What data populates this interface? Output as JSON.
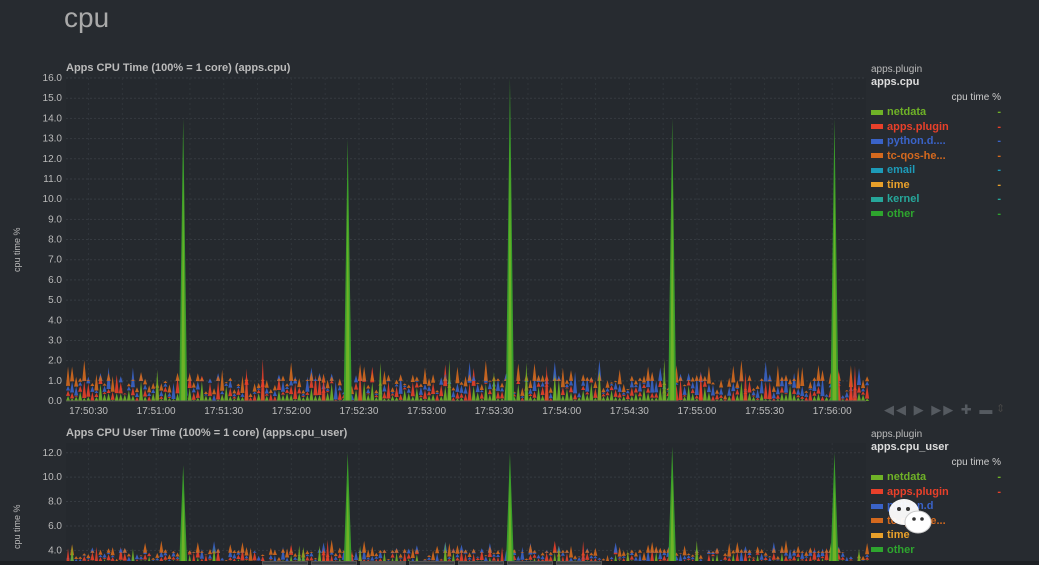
{
  "page": {
    "section_title": "cpu"
  },
  "chart_data": [
    {
      "type": "area",
      "title": "Apps CPU Time (100% = 1 core) (apps.cpu)",
      "ylabel": "cpu time %",
      "ylim": [
        0,
        16
      ],
      "yticks": [
        "16.0",
        "15.0",
        "14.0",
        "13.0",
        "12.0",
        "11.0",
        "10.0",
        "9.0",
        "8.0",
        "7.0",
        "6.0",
        "5.0",
        "4.0",
        "3.0",
        "2.0",
        "1.0",
        "0.0"
      ],
      "xticks": [
        "17:50:30",
        "17:51:00",
        "17:51:30",
        "17:52:00",
        "17:52:30",
        "17:53:00",
        "17:53:30",
        "17:54:00",
        "17:54:30",
        "17:55:00",
        "17:55:30",
        "17:56:00"
      ],
      "xlim_seconds": [
        -40,
        315
      ],
      "grid": true,
      "spikes": [
        {
          "t": 12,
          "value": 14.0
        },
        {
          "t": 85,
          "value": 13.0
        },
        {
          "t": 157,
          "value": 16.0
        },
        {
          "t": 229,
          "value": 14.0
        },
        {
          "t": 301,
          "value": 14.0
        }
      ],
      "legend": {
        "context_label": "apps.plugin",
        "chart_id": "apps.cpu",
        "units": "cpu time %",
        "series": [
          {
            "name": "netdata",
            "color": "#6fb227",
            "value": "-"
          },
          {
            "name": "apps.plugin",
            "color": "#e8402a",
            "value": "-"
          },
          {
            "name": "python.d....",
            "color": "#3a63c8",
            "value": "-"
          },
          {
            "name": "tc-qos-he...",
            "color": "#d4691e",
            "value": "-"
          },
          {
            "name": "email",
            "color": "#1d9bb8",
            "value": "-"
          },
          {
            "name": "time",
            "color": "#e8a02a",
            "value": "-"
          },
          {
            "name": "kernel",
            "color": "#26a69a",
            "value": "-"
          },
          {
            "name": "other",
            "color": "#2ea52e",
            "value": "-"
          }
        ]
      }
    },
    {
      "type": "area",
      "title": "Apps CPU User Time (100% = 1 core) (apps.cpu_user)",
      "ylabel": "cpu time %",
      "ylim": [
        2.8,
        12.8
      ],
      "yticks": [
        "12.0",
        "10.0",
        "8.0",
        "6.0",
        "4.0"
      ],
      "xlim_seconds": [
        -40,
        315
      ],
      "grid": true,
      "spikes": [
        {
          "t": 12,
          "value": 11.0
        },
        {
          "t": 85,
          "value": 12.0
        },
        {
          "t": 157,
          "value": 12.0
        },
        {
          "t": 229,
          "value": 12.5
        },
        {
          "t": 301,
          "value": 12.0
        }
      ],
      "legend": {
        "context_label": "apps.plugin",
        "chart_id": "apps.cpu_user",
        "units": "cpu time %",
        "series": [
          {
            "name": "netdata",
            "color": "#6fb227",
            "value": "-"
          },
          {
            "name": "apps.plugin",
            "color": "#e8402a",
            "value": "-"
          },
          {
            "name": "python.d",
            "color": "#3a63c8",
            "value": ""
          },
          {
            "name": "tc-qos-he...",
            "color": "#d4691e",
            "value": ""
          },
          {
            "name": "time",
            "color": "#e8a02a",
            "value": ""
          },
          {
            "name": "other",
            "color": "#2ea52e",
            "value": ""
          }
        ]
      }
    }
  ],
  "toolbox": {
    "icons": [
      "rewind-icon",
      "play-icon",
      "fast-forward-icon",
      "zoom-in-icon",
      "zoom-out-icon"
    ]
  }
}
